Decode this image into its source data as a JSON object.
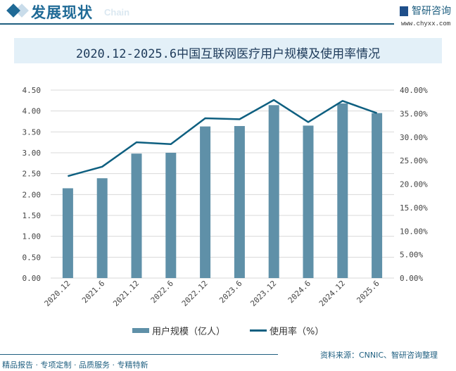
{
  "header": {
    "title": "发展现状",
    "subtitle": "Chain",
    "brand": "智研咨询",
    "url": "www.chyxx.com"
  },
  "chart_data": {
    "type": "bar+line",
    "title": "2020.12-2025.6中国互联网医疗用户规模及使用率情况",
    "categories": [
      "2020.12",
      "2021.6",
      "2021.12",
      "2022.6",
      "2022.12",
      "2023.6",
      "2023.12",
      "2024.6",
      "2024.12",
      "2025.6"
    ],
    "series": [
      {
        "name": "用户规模（亿人）",
        "type": "bar",
        "axis": "left",
        "color": "#5f90a8",
        "values": [
          2.15,
          2.39,
          2.98,
          3.0,
          3.63,
          3.64,
          4.14,
          3.65,
          4.18,
          3.95
        ]
      },
      {
        "name": "使用率（%）",
        "type": "line",
        "axis": "right",
        "color": "#0e5f80",
        "values": [
          21.7,
          23.7,
          28.9,
          28.5,
          34.0,
          33.8,
          37.9,
          33.2,
          37.7,
          35.1
        ]
      }
    ],
    "left_ticks": [
      "0.00",
      "0.50",
      "1.00",
      "1.50",
      "2.00",
      "2.50",
      "3.00",
      "3.50",
      "4.00",
      "4.50"
    ],
    "right_ticks": [
      "0.00%",
      "5.00%",
      "10.00%",
      "15.00%",
      "20.00%",
      "25.00%",
      "30.00%",
      "35.00%",
      "40.00%"
    ],
    "ylim_left": [
      0,
      4.5
    ],
    "ylim_right": [
      0,
      40
    ],
    "grid": true,
    "legend": "bottom"
  },
  "legend": {
    "bar": "用户规模（亿人）",
    "line": "使用率（%）"
  },
  "footer": {
    "source": "资料来源：CNNIC、智研咨询整理",
    "slogan": "精品报告 · 专项定制 · 品质服务 · 专精特新"
  }
}
